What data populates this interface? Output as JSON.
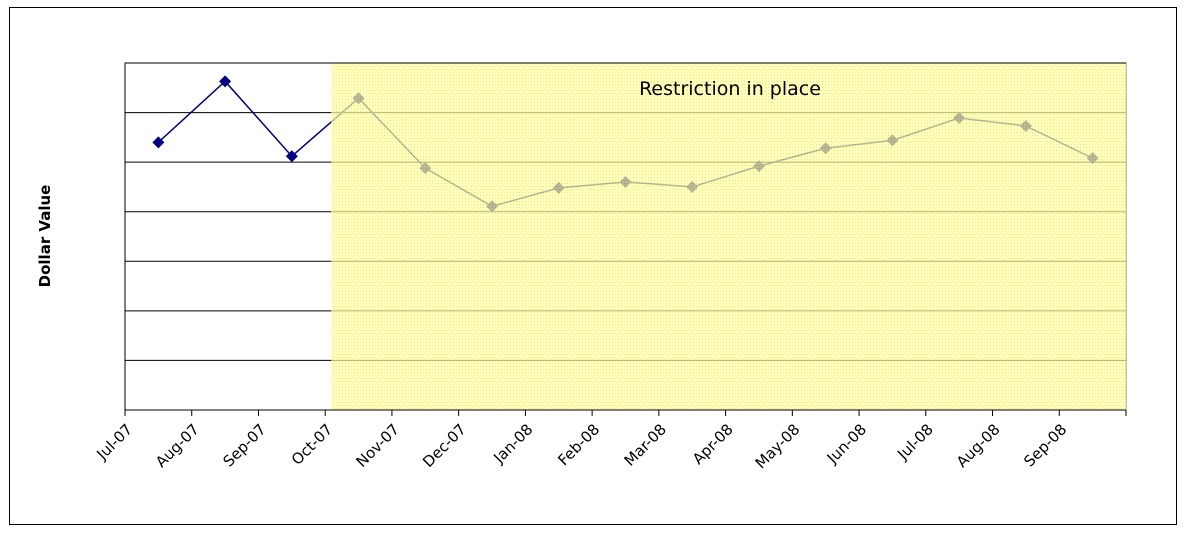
{
  "chart_data": {
    "type": "line",
    "ylabel": "Dollar Value",
    "annotation": "Restriction in place",
    "categories": [
      "Jul-07",
      "Aug-07",
      "Sep-07",
      "Oct-07",
      "Nov-07",
      "Dec-07",
      "Jan-08",
      "Feb-08",
      "Mar-08",
      "Apr-08",
      "May-08",
      "Jun-08",
      "Jul-08",
      "Aug-08",
      "Sep-08"
    ],
    "series": [
      {
        "color": "#000080",
        "values": [
          5.4,
          6.63,
          5.12,
          6.29,
          4.88,
          4.11,
          4.48,
          4.6,
          4.5,
          4.92,
          5.28,
          5.44,
          5.89,
          5.73,
          5.08
        ]
      }
    ],
    "ylim": [
      0,
      7
    ],
    "yticks": [
      1,
      2,
      3,
      4,
      5,
      6,
      7
    ],
    "grid": true
  }
}
